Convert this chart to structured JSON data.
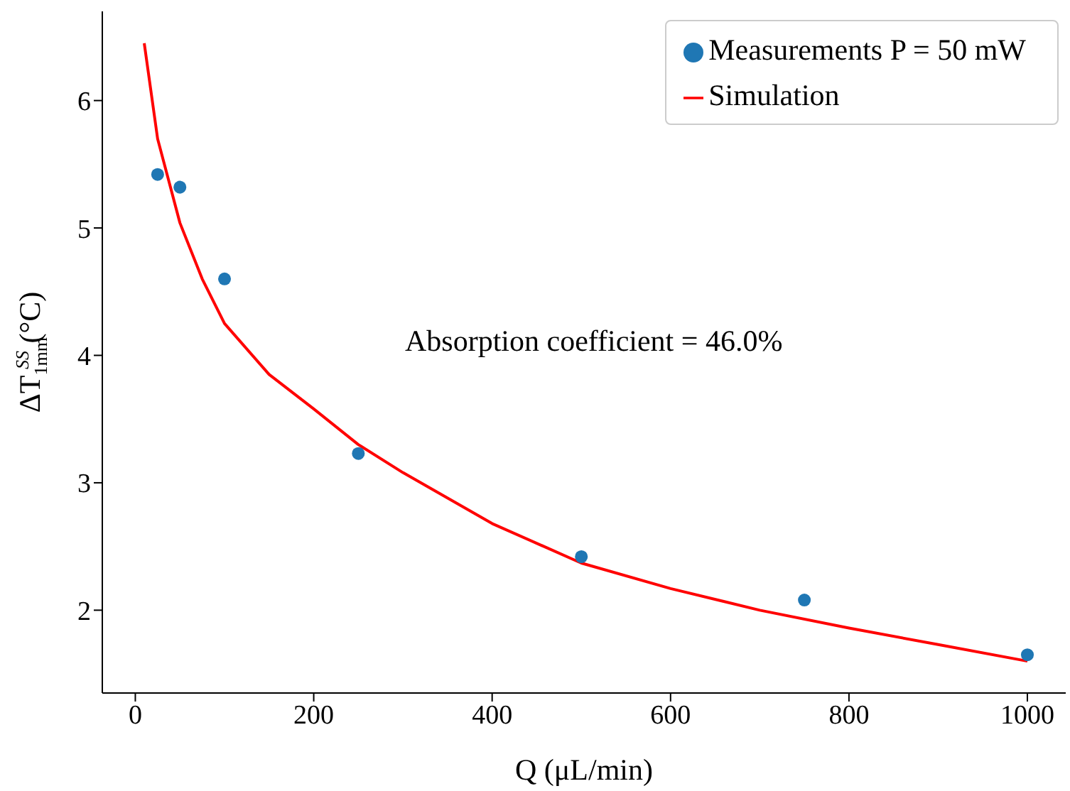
{
  "chart_data": {
    "type": "scatter",
    "xlabel": "Q (μL/min)",
    "ylabel": "ΔT$_{1mm}$$^{SS}$ (°C)",
    "xlim": [
      -37,
      1043
    ],
    "ylim": [
      1.35,
      6.7
    ],
    "xticks": [
      0,
      200,
      400,
      600,
      800,
      1000
    ],
    "yticks": [
      2,
      3,
      4,
      5,
      6
    ],
    "legend": "top right",
    "marker": "circle",
    "annotations": [
      "Absorption coefficient = 46.0%"
    ],
    "series": [
      {
        "name": "Measurements P = 50 mW",
        "color": "#1f77b4",
        "x": [
          25,
          50,
          100,
          250,
          500,
          750,
          1000
        ],
        "values": [
          5.42,
          5.32,
          4.6,
          3.23,
          2.42,
          2.08,
          1.65
        ]
      },
      {
        "name": "Simulation",
        "type": "line",
        "color": "#ff0000",
        "marker": "none",
        "line_style": "solid",
        "x": [
          10,
          25,
          50,
          75,
          100,
          150,
          200,
          250,
          300,
          400,
          500,
          600,
          700,
          800,
          900,
          1000
        ],
        "values": [
          6.45,
          5.7,
          5.04,
          4.6,
          4.25,
          3.85,
          3.58,
          3.3,
          3.08,
          2.68,
          2.37,
          2.17,
          2.0,
          1.86,
          1.73,
          1.6
        ]
      }
    ]
  }
}
